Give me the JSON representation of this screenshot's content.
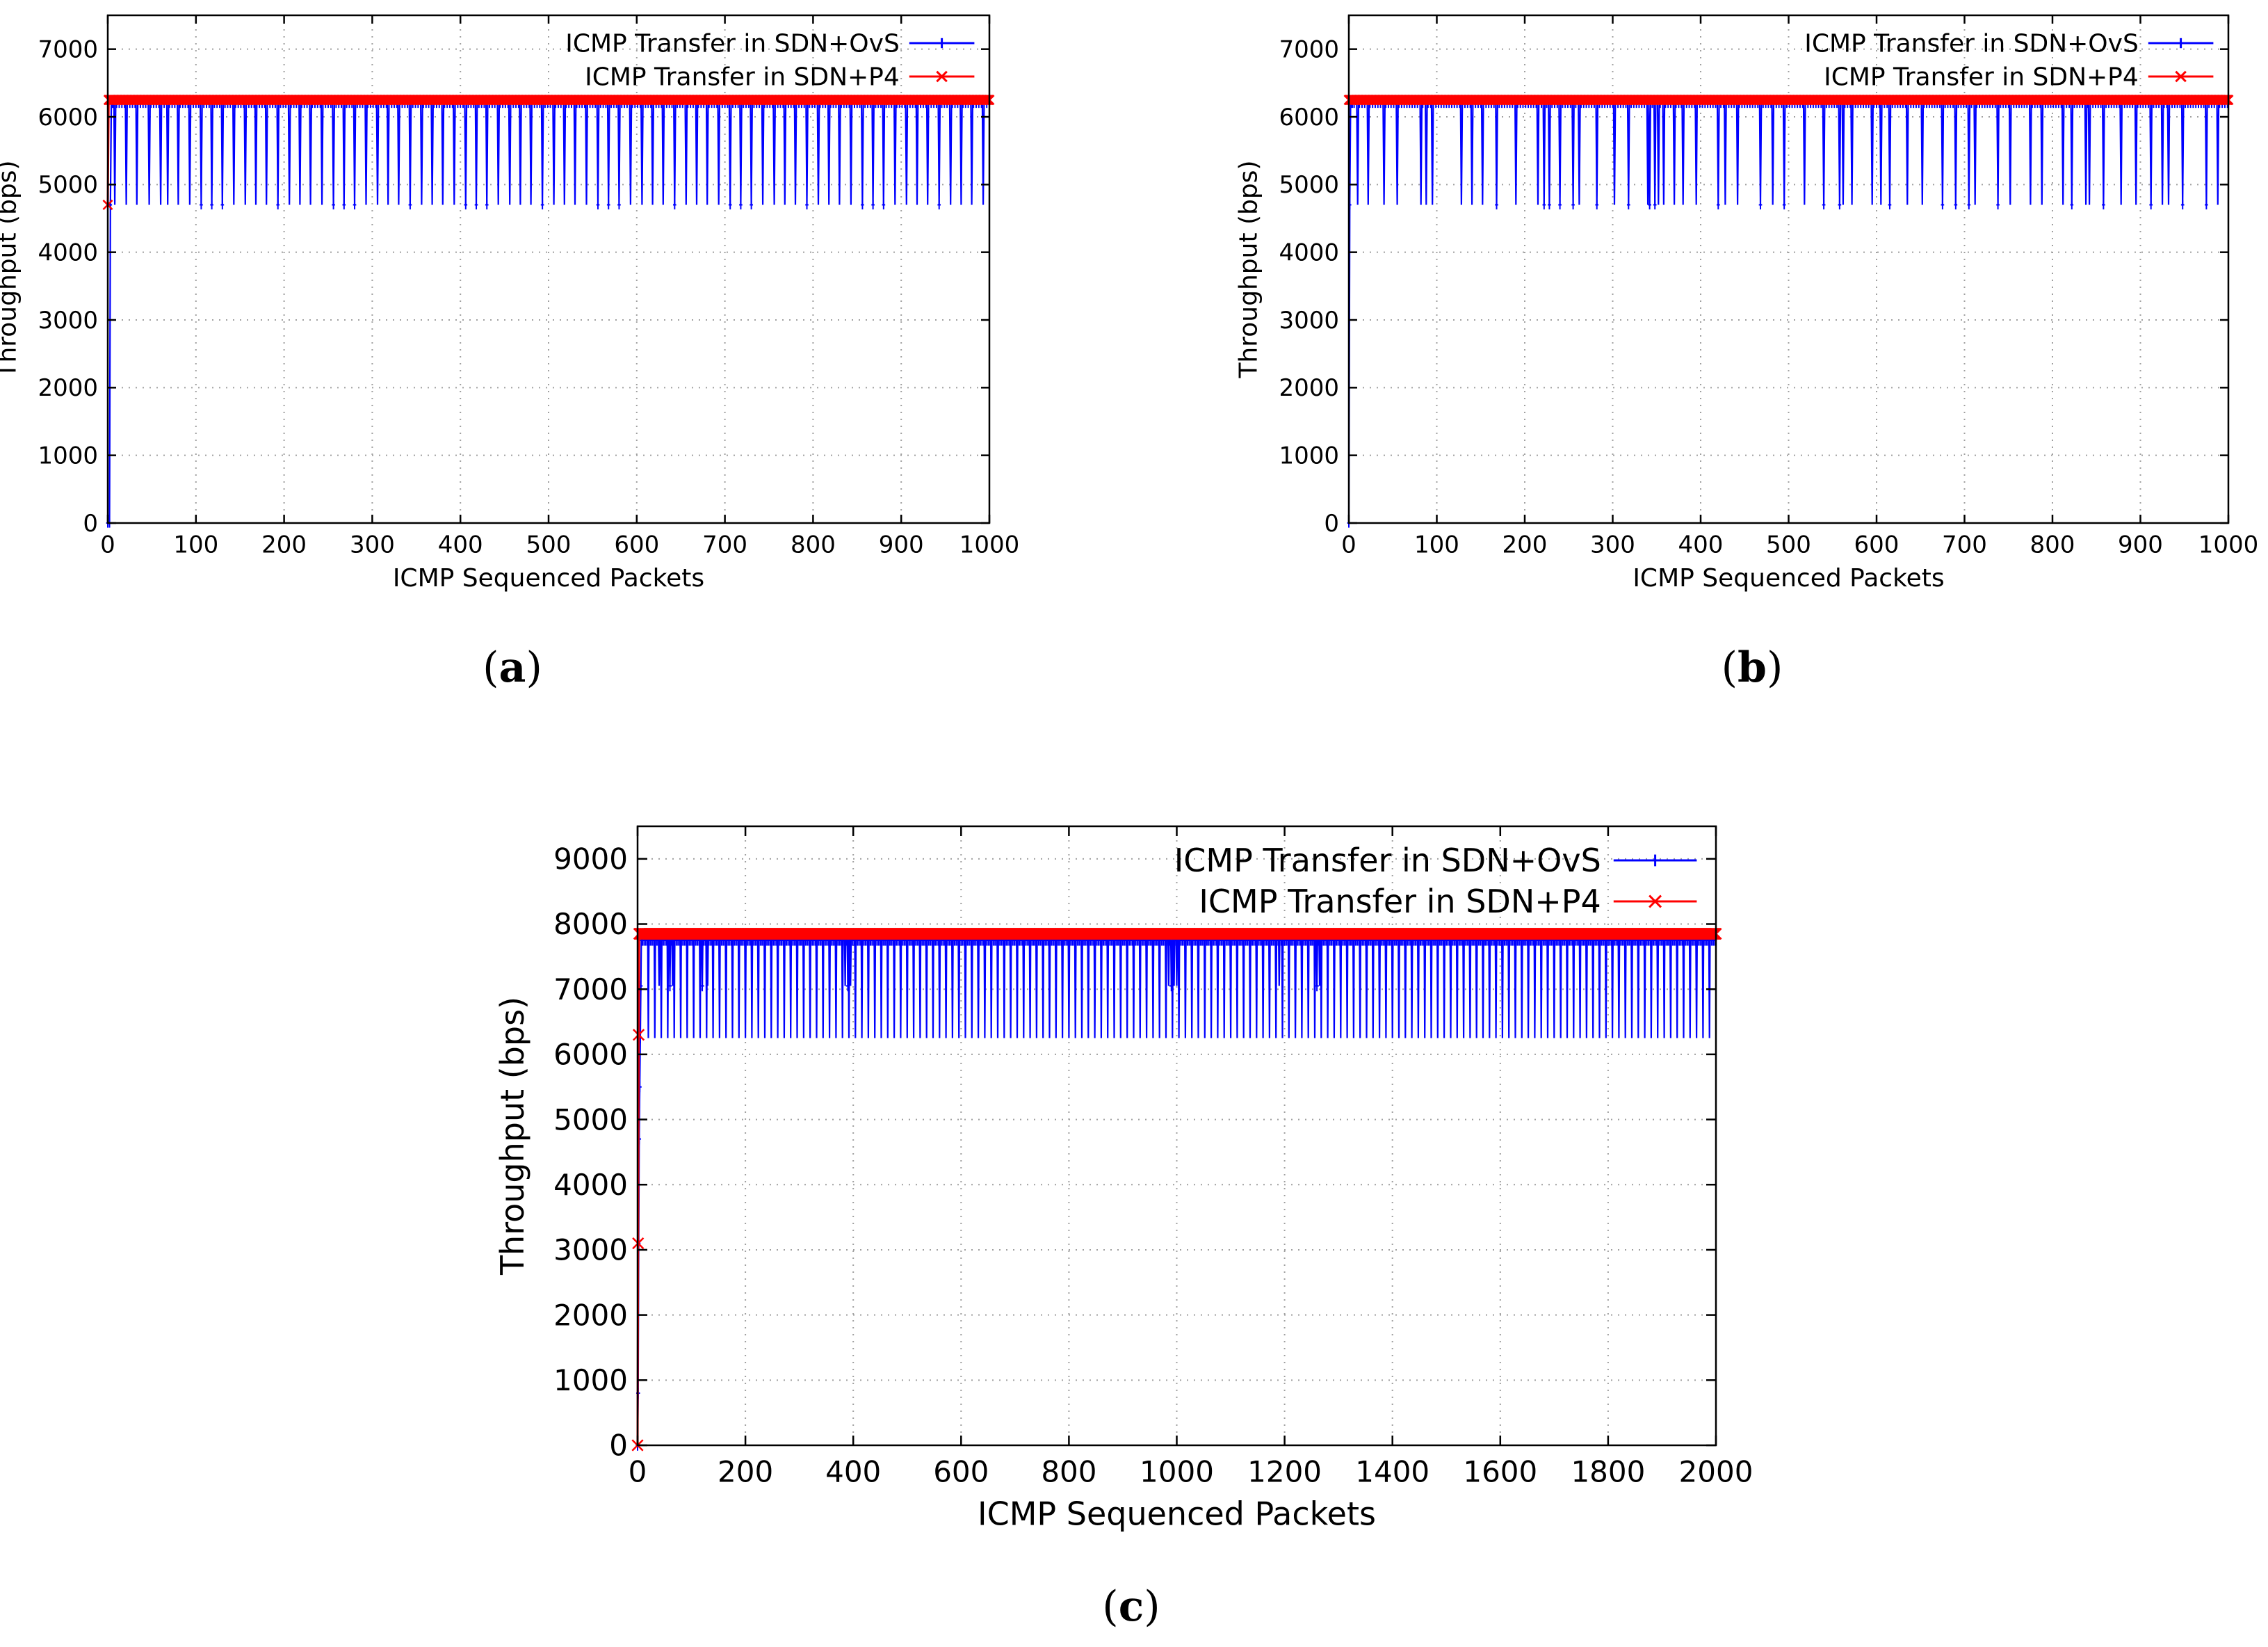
{
  "figure": {
    "captions": [
      {
        "open": "(",
        "letter": "a",
        "close": ")"
      },
      {
        "open": "(",
        "letter": "b",
        "close": ")"
      },
      {
        "open": "(",
        "letter": "c",
        "close": ")"
      }
    ]
  },
  "chart_data": [
    {
      "type": "line",
      "panel": "a",
      "xlabel": "ICMP Sequenced Packets",
      "ylabel": "Throughput (bps)",
      "xlim": [
        0,
        1000
      ],
      "ylim": [
        0,
        7500
      ],
      "xticks": [
        0,
        100,
        200,
        300,
        400,
        500,
        600,
        700,
        800,
        900,
        1000
      ],
      "yticks": [
        0,
        1000,
        2000,
        3000,
        4000,
        5000,
        6000,
        7000
      ],
      "grid": true,
      "legend_position": "top-right",
      "series": [
        {
          "name": "ICMP Transfer in SDN+OvS",
          "color": "#0000ff",
          "marker": "+",
          "start": [
            [
              0,
              0
            ],
            [
              2,
              0
            ],
            [
              3,
              4700
            ]
          ],
          "low": 4700,
          "high": 6200,
          "dips_at": [
            8,
            21,
            33,
            47,
            60,
            68,
            80,
            93,
            106,
            118,
            130,
            143,
            156,
            168,
            180,
            193,
            206,
            218,
            230,
            243,
            256,
            268,
            280,
            293,
            306,
            318,
            330,
            343,
            356,
            368,
            380,
            393,
            406,
            418,
            430,
            443,
            456,
            468,
            480,
            493,
            506,
            518,
            530,
            543,
            556,
            568,
            580,
            593,
            606,
            618,
            630,
            643,
            656,
            668,
            680,
            693,
            706,
            718,
            730,
            743,
            756,
            768,
            780,
            793,
            806,
            818,
            830,
            843,
            856,
            868,
            880,
            893,
            906,
            918,
            930,
            943,
            956,
            968,
            980,
            993
          ]
        },
        {
          "name": "ICMP Transfer in SDN+P4",
          "color": "#ff0000",
          "marker": "x",
          "start": [
            [
              0,
              4700
            ],
            [
              1,
              6250
            ]
          ],
          "low": 6250,
          "high": 6250,
          "dips_at": []
        }
      ]
    },
    {
      "type": "line",
      "panel": "b",
      "xlabel": "ICMP Sequenced Packets",
      "ylabel": "Throughput (bps)",
      "xlim": [
        0,
        1000
      ],
      "ylim": [
        0,
        7500
      ],
      "xticks": [
        0,
        100,
        200,
        300,
        400,
        500,
        600,
        700,
        800,
        900,
        1000
      ],
      "yticks": [
        0,
        1000,
        2000,
        3000,
        4000,
        5000,
        6000,
        7000
      ],
      "grid": true,
      "legend_position": "top-right",
      "series": [
        {
          "name": "ICMP Transfer in SDN+OvS",
          "color": "#0000ff",
          "marker": "+",
          "start": [
            [
              0,
              0
            ],
            [
              1,
              4700
            ]
          ],
          "low": 4700,
          "high": 6200,
          "dips_at": [
            10,
            22,
            40,
            55,
            82,
            88,
            95,
            128,
            140,
            152,
            168,
            190,
            215,
            222,
            228,
            240,
            255,
            262,
            282,
            302,
            318,
            340,
            342,
            348,
            352,
            358,
            370,
            380,
            395,
            420,
            428,
            442,
            468,
            482,
            495,
            518,
            540,
            558,
            562,
            572,
            595,
            605,
            615,
            635,
            652,
            675,
            690,
            705,
            712,
            738,
            752,
            775,
            788,
            812,
            822,
            838,
            842,
            858,
            878,
            895,
            912,
            925,
            932,
            948,
            975,
            988
          ]
        },
        {
          "name": "ICMP Transfer in SDN+P4",
          "color": "#ff0000",
          "marker": "x",
          "start": [
            [
              0,
              6250
            ]
          ],
          "low": 6250,
          "high": 6250,
          "dips_at": []
        }
      ]
    },
    {
      "type": "line",
      "panel": "c",
      "xlabel": "ICMP Sequenced Packets",
      "ylabel": "Throughput (bps)",
      "xlim": [
        0,
        2000
      ],
      "ylim": [
        0,
        9500
      ],
      "xticks": [
        0,
        200,
        400,
        600,
        800,
        1000,
        1200,
        1400,
        1600,
        1800,
        2000
      ],
      "yticks": [
        0,
        1000,
        2000,
        3000,
        4000,
        5000,
        6000,
        7000,
        8000,
        9000
      ],
      "grid": true,
      "legend_position": "top-right",
      "series": [
        {
          "name": "ICMP Transfer in SDN+OvS",
          "color": "#0000ff",
          "marker": "+",
          "start": [
            [
              0,
              0
            ],
            [
              1,
              800
            ],
            [
              2,
              3100
            ],
            [
              3,
              4700
            ],
            [
              4,
              5500
            ],
            [
              5,
              6250
            ],
            [
              6,
              7050
            ]
          ],
          "low": 6250,
          "high": 7750,
          "mid": 7050,
          "mid_at": [
            40,
            60,
            65,
            120,
            130,
            380,
            385,
            390,
            395,
            980,
            985,
            990,
            995,
            1000,
            1190,
            1260,
            1265
          ],
          "dips_at": [
            20,
            32,
            44,
            56,
            68,
            80,
            92,
            104,
            116,
            128,
            140,
            152,
            164,
            176,
            188,
            200,
            212,
            224,
            236,
            248,
            260,
            272,
            284,
            296,
            308,
            320,
            332,
            344,
            356,
            368,
            380,
            392,
            404,
            416,
            428,
            440,
            452,
            464,
            476,
            488,
            500,
            512,
            524,
            536,
            548,
            560,
            572,
            584,
            596,
            608,
            620,
            632,
            644,
            656,
            668,
            680,
            692,
            704,
            716,
            728,
            740,
            752,
            764,
            776,
            788,
            800,
            812,
            824,
            836,
            848,
            860,
            872,
            884,
            896,
            908,
            920,
            932,
            944,
            956,
            968,
            980,
            992,
            1004,
            1016,
            1028,
            1040,
            1052,
            1064,
            1076,
            1088,
            1100,
            1112,
            1124,
            1136,
            1148,
            1160,
            1172,
            1184,
            1196,
            1208,
            1220,
            1232,
            1244,
            1256,
            1268,
            1280,
            1292,
            1304,
            1316,
            1328,
            1340,
            1352,
            1364,
            1376,
            1388,
            1400,
            1412,
            1424,
            1436,
            1448,
            1460,
            1472,
            1484,
            1496,
            1508,
            1520,
            1532,
            1544,
            1556,
            1568,
            1580,
            1592,
            1604,
            1616,
            1628,
            1640,
            1652,
            1664,
            1676,
            1688,
            1700,
            1712,
            1724,
            1736,
            1748,
            1760,
            1772,
            1784,
            1796,
            1808,
            1820,
            1832,
            1844,
            1856,
            1868,
            1880,
            1892,
            1904,
            1916,
            1928,
            1940,
            1952,
            1964,
            1976,
            1988
          ]
        },
        {
          "name": "ICMP Transfer in SDN+P4",
          "color": "#ff0000",
          "marker": "x",
          "start": [
            [
              0,
              0
            ],
            [
              1,
              3100
            ],
            [
              2,
              6300
            ],
            [
              3,
              7850
            ]
          ],
          "low": 7850,
          "high": 7850,
          "dips_at": []
        }
      ]
    }
  ]
}
